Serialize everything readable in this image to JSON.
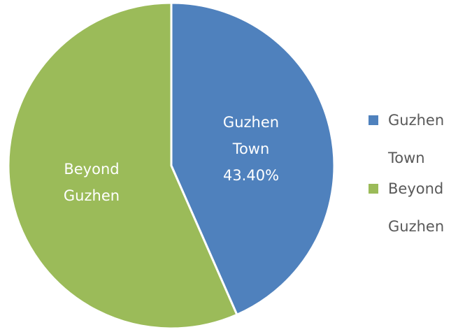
{
  "chart_data": {
    "type": "pie",
    "categories": [
      "Guzhen Town",
      "Beyond Guzhen"
    ],
    "values": [
      43.4,
      56.6
    ],
    "value_labels": [
      "43.40%",
      null
    ],
    "colors": [
      "#4f81bd",
      "#9bbb59"
    ],
    "legend": "right"
  }
}
